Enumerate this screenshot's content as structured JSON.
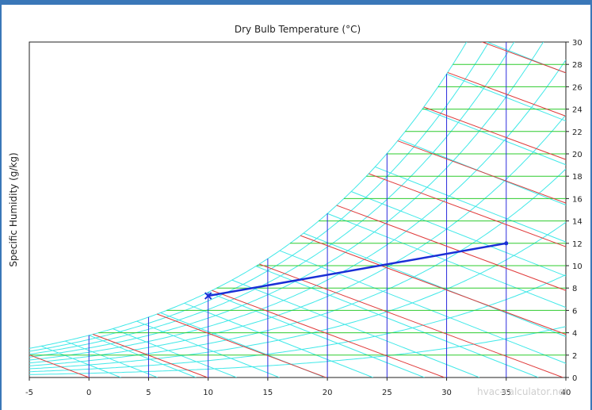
{
  "chart_data": {
    "type": "psychrometric",
    "title": "Dry Bulb Temperature (°C)",
    "xlabel": "Dry Bulb Temperature (°C)",
    "ylabel": "Specific Humidity (g/kg)",
    "xlim": [
      -5,
      40
    ],
    "ylim": [
      0,
      30
    ],
    "x_ticks": [
      -5,
      0,
      5,
      10,
      15,
      20,
      25,
      30,
      35,
      40
    ],
    "y_ticks": [
      0,
      2,
      4,
      6,
      8,
      10,
      12,
      14,
      16,
      18,
      20,
      22,
      24,
      26,
      28,
      30
    ],
    "grid": true,
    "process_line": {
      "start": {
        "x": 10,
        "y": 7.3,
        "marker": "x"
      },
      "end": {
        "x": 35,
        "y": 12.0,
        "marker": "dot"
      }
    },
    "colors": {
      "saturation_curves": "#40e8e8",
      "dry_bulb_lines": "#2b2bdc",
      "humidity_lines": "#2ecc2e",
      "enthalpy_lines": "#e03a3a",
      "process_line": "#1a2fd6",
      "frame": "#3a77b8"
    }
  },
  "watermark": "hvac-calculator.net"
}
